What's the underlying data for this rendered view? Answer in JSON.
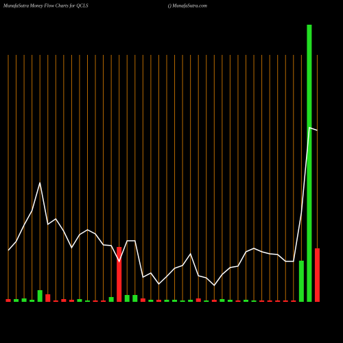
{
  "chart_data": {
    "type": "bar-line",
    "title": "MunafaSutra  Money Flow  Charts for QCLS",
    "subtitle": "() MunafaSutra.com",
    "ylim": [
      0,
      420
    ],
    "bars": {
      "values": [
        4,
        4,
        5,
        3,
        17,
        11,
        2,
        4,
        3,
        4,
        2,
        2,
        2,
        7,
        80,
        10,
        10,
        5,
        3,
        3,
        3,
        3,
        2,
        3,
        5,
        2,
        3,
        4,
        3,
        2,
        3,
        2,
        2,
        2,
        2,
        2,
        2,
        60,
        404,
        78
      ],
      "colors": [
        "#ff2020",
        "#22dd22",
        "#22dd22",
        "#22dd22",
        "#22dd22",
        "#ff2020",
        "#ff2020",
        "#ff2020",
        "#ff2020",
        "#22dd22",
        "#22dd22",
        "#ff2020",
        "#ff2020",
        "#22dd22",
        "#ff2020",
        "#22dd22",
        "#22dd22",
        "#ff2020",
        "#22dd22",
        "#ff2020",
        "#22dd22",
        "#22dd22",
        "#22dd22",
        "#22dd22",
        "#ff2020",
        "#22dd22",
        "#ff2020",
        "#22dd22",
        "#22dd22",
        "#ff2020",
        "#22dd22",
        "#22dd22",
        "#ff2020",
        "#ff2020",
        "#ff2020",
        "#ff2020",
        "#ff2020",
        "#22dd22",
        "#22dd22",
        "#ff2020"
      ]
    },
    "line": {
      "color": "#ffffff",
      "values": [
        75,
        88,
        112,
        133,
        174,
        113,
        121,
        103,
        79,
        98,
        105,
        99,
        83,
        82,
        59,
        89,
        89,
        36,
        42,
        26,
        37,
        49,
        53,
        70,
        38,
        35,
        24,
        40,
        50,
        52,
        73,
        78,
        73,
        70,
        69,
        59,
        59,
        130,
        254,
        250
      ]
    }
  }
}
